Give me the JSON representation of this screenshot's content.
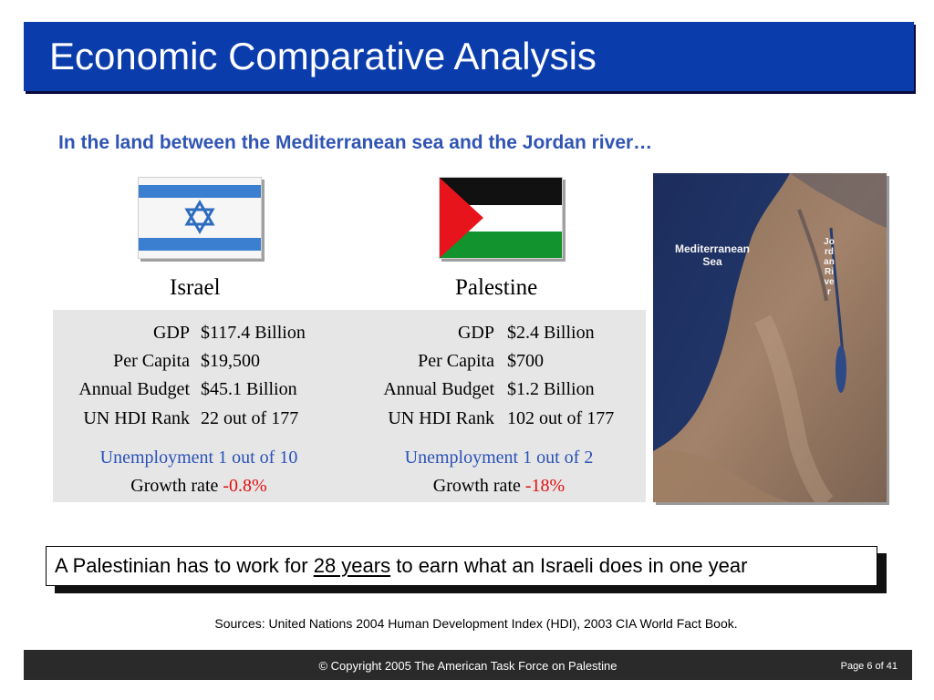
{
  "slide": {
    "title": "Economic Comparative Analysis",
    "subtitle": "In the land between the Mediterranean sea and the Jordan river…"
  },
  "colors": {
    "title_bar": "#0a3dab",
    "subtitle": "#2f54b4",
    "unemployment": "#2a52b8",
    "negative": "#e01010",
    "panel": "#e6e6e6",
    "footer": "#2a2a2a"
  },
  "israel": {
    "name": "Israel",
    "flag": "israel-flag",
    "stats": [
      {
        "label": "GDP",
        "value": "$117.4 Billion"
      },
      {
        "label": "Per Capita",
        "value": "$19,500"
      },
      {
        "label": "Annual Budget",
        "value": "$45.1 Billion"
      },
      {
        "label": "UN HDI Rank",
        "value": "22 out of 177"
      }
    ],
    "unemployment": "Unemployment 1 out of 10",
    "growth_label": "Growth rate",
    "growth_value": "-0.8%"
  },
  "palestine": {
    "name": "Palestine",
    "flag": "palestine-flag",
    "stats": [
      {
        "label": "GDP",
        "value": "$2.4 Billion"
      },
      {
        "label": "Per Capita",
        "value": "$700"
      },
      {
        "label": "Annual Budget",
        "value": "$1.2 Billion"
      },
      {
        "label": "UN HDI Rank",
        "value": "102 out of 177"
      }
    ],
    "unemployment": "Unemployment 1 out of 2",
    "growth_label": "Growth rate",
    "growth_value": "-18%"
  },
  "map": {
    "sea_label": "Mediterranean\nSea",
    "river_label": "Jordan River"
  },
  "callout": {
    "before": "A Palestinian has to work for",
    "emphasis": "28 years",
    "after": "to earn what an Israeli does in one year"
  },
  "sources": "Sources: United Nations 2004 Human Development Index (HDI), 2003 CIA World Fact Book.",
  "footer": {
    "copyright": "© Copyright 2005 The American Task Force on Palestine",
    "page": "Page 6 of 41"
  }
}
